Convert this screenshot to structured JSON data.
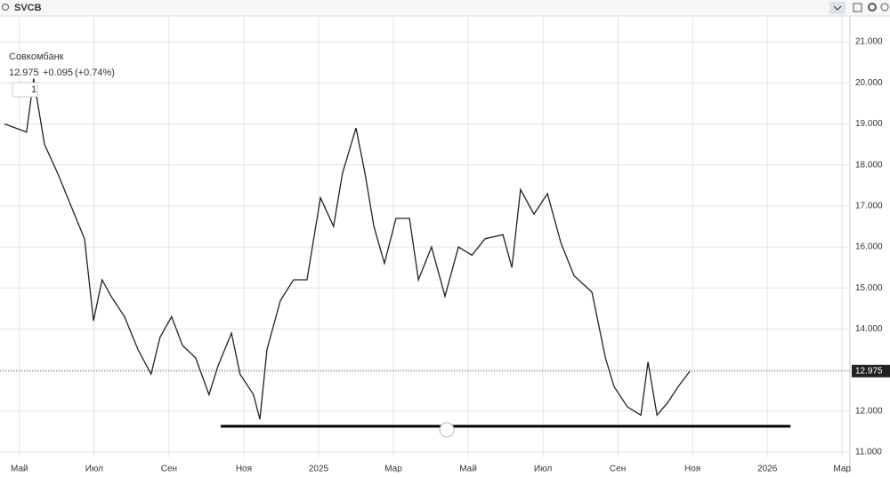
{
  "toolbar": {
    "ticker": "SVCB"
  },
  "legend": {
    "name": "Совкомбанк",
    "price": "12.975",
    "change": "+0.095",
    "change_pct": "(+0.74%)",
    "interval": "1"
  },
  "chart_data": {
    "type": "line",
    "x": [
      -0.4,
      0.19,
      0.38,
      0.67,
      1.02,
      1.38,
      1.74,
      1.98,
      2.21,
      2.45,
      2.81,
      3.17,
      3.52,
      3.76,
      4.07,
      4.36,
      4.71,
      5.07,
      5.31,
      5.67,
      5.9,
      6.26,
      6.43,
      6.62,
      6.98,
      7.33,
      7.69,
      8.05,
      8.4,
      8.64,
      9.0,
      9.24,
      9.48,
      9.76,
      10.07,
      10.43,
      10.67,
      11.02,
      11.38,
      11.74,
      12.1,
      12.45,
      12.93,
      13.17,
      13.4,
      13.76,
      14.12,
      14.48,
      14.83,
      15.31,
      15.67,
      15.9,
      16.26,
      16.62,
      16.81,
      17.05,
      17.33,
      17.62,
      17.93
    ],
    "series": [
      {
        "name": "Совкомбанк",
        "color": "#222222",
        "values": [
          19.0,
          18.8,
          20.1,
          18.5,
          17.8,
          17.0,
          16.2,
          14.2,
          15.2,
          14.8,
          14.3,
          13.5,
          12.9,
          13.8,
          14.3,
          13.6,
          13.3,
          12.4,
          13.1,
          13.9,
          12.9,
          12.4,
          11.8,
          13.5,
          14.7,
          15.2,
          15.2,
          17.2,
          16.5,
          17.8,
          18.9,
          17.8,
          16.5,
          15.6,
          16.7,
          16.7,
          15.2,
          16.0,
          14.8,
          16.0,
          15.8,
          16.2,
          16.3,
          15.5,
          17.4,
          16.8,
          17.3,
          16.1,
          15.3,
          14.9,
          13.3,
          12.6,
          12.1,
          11.9,
          13.2,
          11.9,
          12.2,
          12.6,
          12.975
        ]
      }
    ],
    "xlim": [
      -0.52,
      22.21
    ],
    "ylim": [
      10.87,
      21.63
    ],
    "xticks": [
      {
        "value": 0,
        "label": "Май"
      },
      {
        "value": 2,
        "label": "Июл"
      },
      {
        "value": 4,
        "label": "Сен"
      },
      {
        "value": 6,
        "label": "Ноя"
      },
      {
        "value": 8,
        "label": "2025"
      },
      {
        "value": 10,
        "label": "Мар"
      },
      {
        "value": 12,
        "label": "Май"
      },
      {
        "value": 14,
        "label": "Июл"
      },
      {
        "value": 16,
        "label": "Сен"
      },
      {
        "value": 18,
        "label": "Ноя"
      },
      {
        "value": 20,
        "label": "2026"
      },
      {
        "value": 22,
        "label": "Мар"
      }
    ],
    "yticks": [
      {
        "value": 11,
        "label": "11.000"
      },
      {
        "value": 12,
        "label": "12.000"
      },
      {
        "value": 13,
        "label": "13.000"
      },
      {
        "value": 14,
        "label": "14.000"
      },
      {
        "value": 15,
        "label": "15.000"
      },
      {
        "value": 16,
        "label": "16.000"
      },
      {
        "value": 17,
        "label": "17.000"
      },
      {
        "value": 18,
        "label": "18.000"
      },
      {
        "value": 19,
        "label": "19.000"
      },
      {
        "value": 20,
        "label": "20.000"
      },
      {
        "value": 21,
        "label": "21.000"
      }
    ],
    "grid": true,
    "last_price": {
      "value": 12.975,
      "label": "12.975"
    },
    "support_line": {
      "x": [
        5.38,
        20.62
      ],
      "value": 11.63
    }
  }
}
